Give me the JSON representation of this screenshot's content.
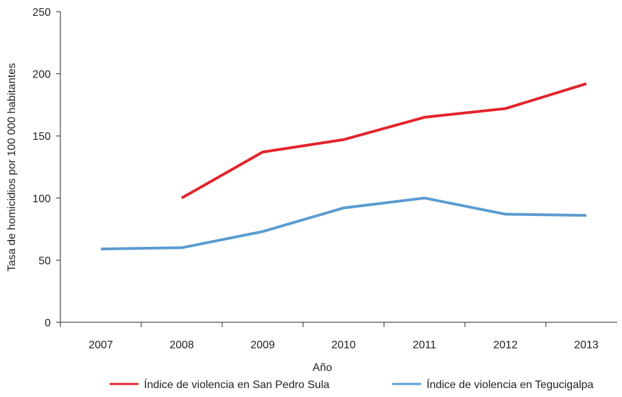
{
  "chart_data": {
    "type": "line",
    "title": "",
    "xlabel": "Año",
    "ylabel": "Tasa de homicidios por 100 000 habitantes",
    "categories": [
      "2007",
      "2008",
      "2009",
      "2010",
      "2011",
      "2012",
      "2013"
    ],
    "ylim": [
      0,
      250
    ],
    "yticks": [
      0,
      50,
      100,
      150,
      200,
      250
    ],
    "grid": false,
    "legend_position": "bottom",
    "series": [
      {
        "name": "Índice de violencia en San Pedro Sula",
        "color": "#e3232a",
        "values": [
          null,
          100,
          137,
          147,
          165,
          172,
          192
        ]
      },
      {
        "name": "Índice de violencia en Tegucigalpa",
        "color": "#5b9bd1",
        "values": [
          59,
          60,
          73,
          92,
          100,
          87,
          86
        ]
      }
    ]
  }
}
